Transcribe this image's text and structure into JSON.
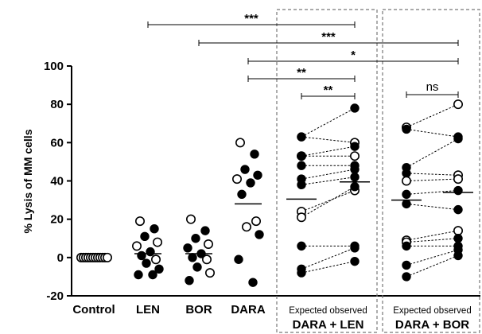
{
  "chart_data": {
    "type": "scatter",
    "ylabel": "% Lysis of MM cells",
    "ylim": [
      -20,
      100
    ],
    "yticks": [
      -20,
      0,
      20,
      40,
      60,
      80,
      100
    ],
    "categories": [
      "Control",
      "LEN",
      "BOR",
      "DARA"
    ],
    "groups": [
      {
        "label": "DARA + LEN",
        "sublabel": "Expected observed"
      },
      {
        "label": "DARA + BOR",
        "sublabel": "Expected observed"
      }
    ],
    "single_series": [
      {
        "name": "Control",
        "median": 0,
        "open": [
          0,
          0,
          0,
          0,
          0,
          0,
          0,
          0,
          0,
          0,
          0,
          0
        ],
        "filled": []
      },
      {
        "name": "LEN",
        "median": 2,
        "open": [
          19,
          8,
          6,
          -1
        ],
        "filled": [
          15,
          11,
          3,
          1,
          -3,
          -6,
          -9,
          -9
        ]
      },
      {
        "name": "BOR",
        "median": 2,
        "open": [
          20,
          7,
          -1,
          -8
        ],
        "filled": [
          14,
          10,
          5,
          2,
          0,
          -5,
          -12
        ]
      },
      {
        "name": "DARA",
        "median": 28,
        "open": [
          60,
          41,
          19,
          16
        ],
        "filled": [
          54,
          46,
          43,
          39,
          33,
          12,
          -1,
          -13
        ]
      }
    ],
    "paired_series": [
      {
        "name": "DARA + LEN",
        "expected_median": 30.5,
        "observed_median": 39.5,
        "pairs": [
          {
            "expected": 63,
            "observed": 78,
            "expected_open": false,
            "observed_open": false
          },
          {
            "expected": 63,
            "observed": 60,
            "expected_open": false,
            "observed_open": true
          },
          {
            "expected": 53,
            "observed": 58,
            "expected_open": true,
            "observed_open": false
          },
          {
            "expected": 53,
            "observed": 53,
            "expected_open": false,
            "observed_open": true
          },
          {
            "expected": 48,
            "observed": 48,
            "expected_open": false,
            "observed_open": false
          },
          {
            "expected": 41,
            "observed": 46,
            "expected_open": false,
            "observed_open": false
          },
          {
            "expected": 38,
            "observed": 42,
            "expected_open": false,
            "observed_open": false
          },
          {
            "expected": 24,
            "observed": 35,
            "expected_open": true,
            "observed_open": true
          },
          {
            "expected": 21,
            "observed": 37,
            "expected_open": true,
            "observed_open": false
          },
          {
            "expected": 6,
            "observed": 6,
            "expected_open": false,
            "observed_open": false
          },
          {
            "expected": -6,
            "observed": 5,
            "expected_open": false,
            "observed_open": false
          },
          {
            "expected": -8,
            "observed": -2,
            "expected_open": false,
            "observed_open": false
          }
        ]
      },
      {
        "name": "DARA + BOR",
        "expected_median": 30,
        "observed_median": 34,
        "pairs": [
          {
            "expected": 68,
            "observed": 80,
            "expected_open": true,
            "observed_open": true
          },
          {
            "expected": 67,
            "observed": 63,
            "expected_open": false,
            "observed_open": false
          },
          {
            "expected": 47,
            "observed": 62,
            "expected_open": false,
            "observed_open": false
          },
          {
            "expected": 44,
            "observed": 43,
            "expected_open": false,
            "observed_open": true
          },
          {
            "expected": 40,
            "observed": 41,
            "expected_open": true,
            "observed_open": true
          },
          {
            "expected": 33,
            "observed": 35,
            "expected_open": false,
            "observed_open": false
          },
          {
            "expected": 28,
            "observed": 25,
            "expected_open": false,
            "observed_open": false
          },
          {
            "expected": 9,
            "observed": 14,
            "expected_open": true,
            "observed_open": true
          },
          {
            "expected": 8,
            "observed": 10,
            "expected_open": true,
            "observed_open": false
          },
          {
            "expected": 6,
            "observed": 6,
            "expected_open": false,
            "observed_open": false
          },
          {
            "expected": -4,
            "observed": 4,
            "expected_open": false,
            "observed_open": false
          },
          {
            "expected": -10,
            "observed": 1,
            "expected_open": false,
            "observed_open": false
          }
        ]
      }
    ],
    "significance": [
      {
        "label": "***",
        "from": "LEN",
        "to": "DARA + LEN"
      },
      {
        "label": "***",
        "from": "BOR",
        "to": "DARA + BOR"
      },
      {
        "label": "*",
        "from": "DARA",
        "to": "DARA + BOR"
      },
      {
        "label": "**",
        "from": "DARA",
        "to": "DARA + LEN"
      },
      {
        "label": "**",
        "from": "DARA + LEN expected",
        "to": "DARA + LEN observed"
      },
      {
        "label": "ns",
        "from": "DARA + BOR expected",
        "to": "DARA + BOR observed"
      }
    ]
  }
}
